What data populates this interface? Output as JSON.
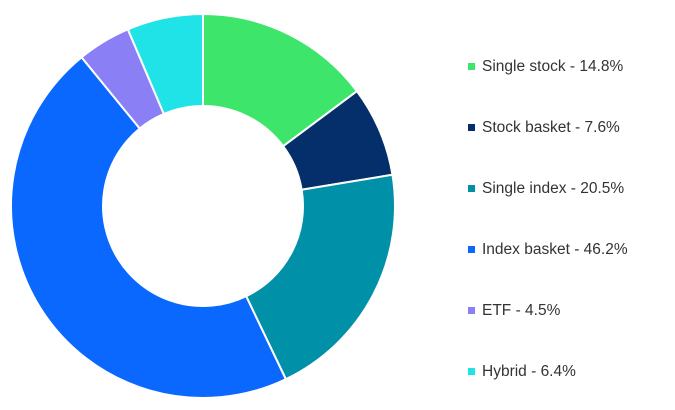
{
  "chart_data": {
    "type": "pie",
    "donut": true,
    "start_angle_deg": 0,
    "direction": "clockwise",
    "legend_position": "right",
    "slices": [
      {
        "label": "Single stock - 14.8%",
        "value": 14.8,
        "color": "#3de66b"
      },
      {
        "label": "Stock basket - 7.6%",
        "value": 7.6,
        "color": "#052f6b"
      },
      {
        "label": "Single index - 20.5%",
        "value": 20.5,
        "color": "#0090a8"
      },
      {
        "label": "Index basket - 46.2%",
        "value": 46.2,
        "color": "#0a68ff"
      },
      {
        "label": "ETF - 4.5%",
        "value": 4.5,
        "color": "#8b7ff5"
      },
      {
        "label": "Hybrid - 6.4%",
        "value": 6.4,
        "color": "#1fe3e6"
      }
    ]
  }
}
